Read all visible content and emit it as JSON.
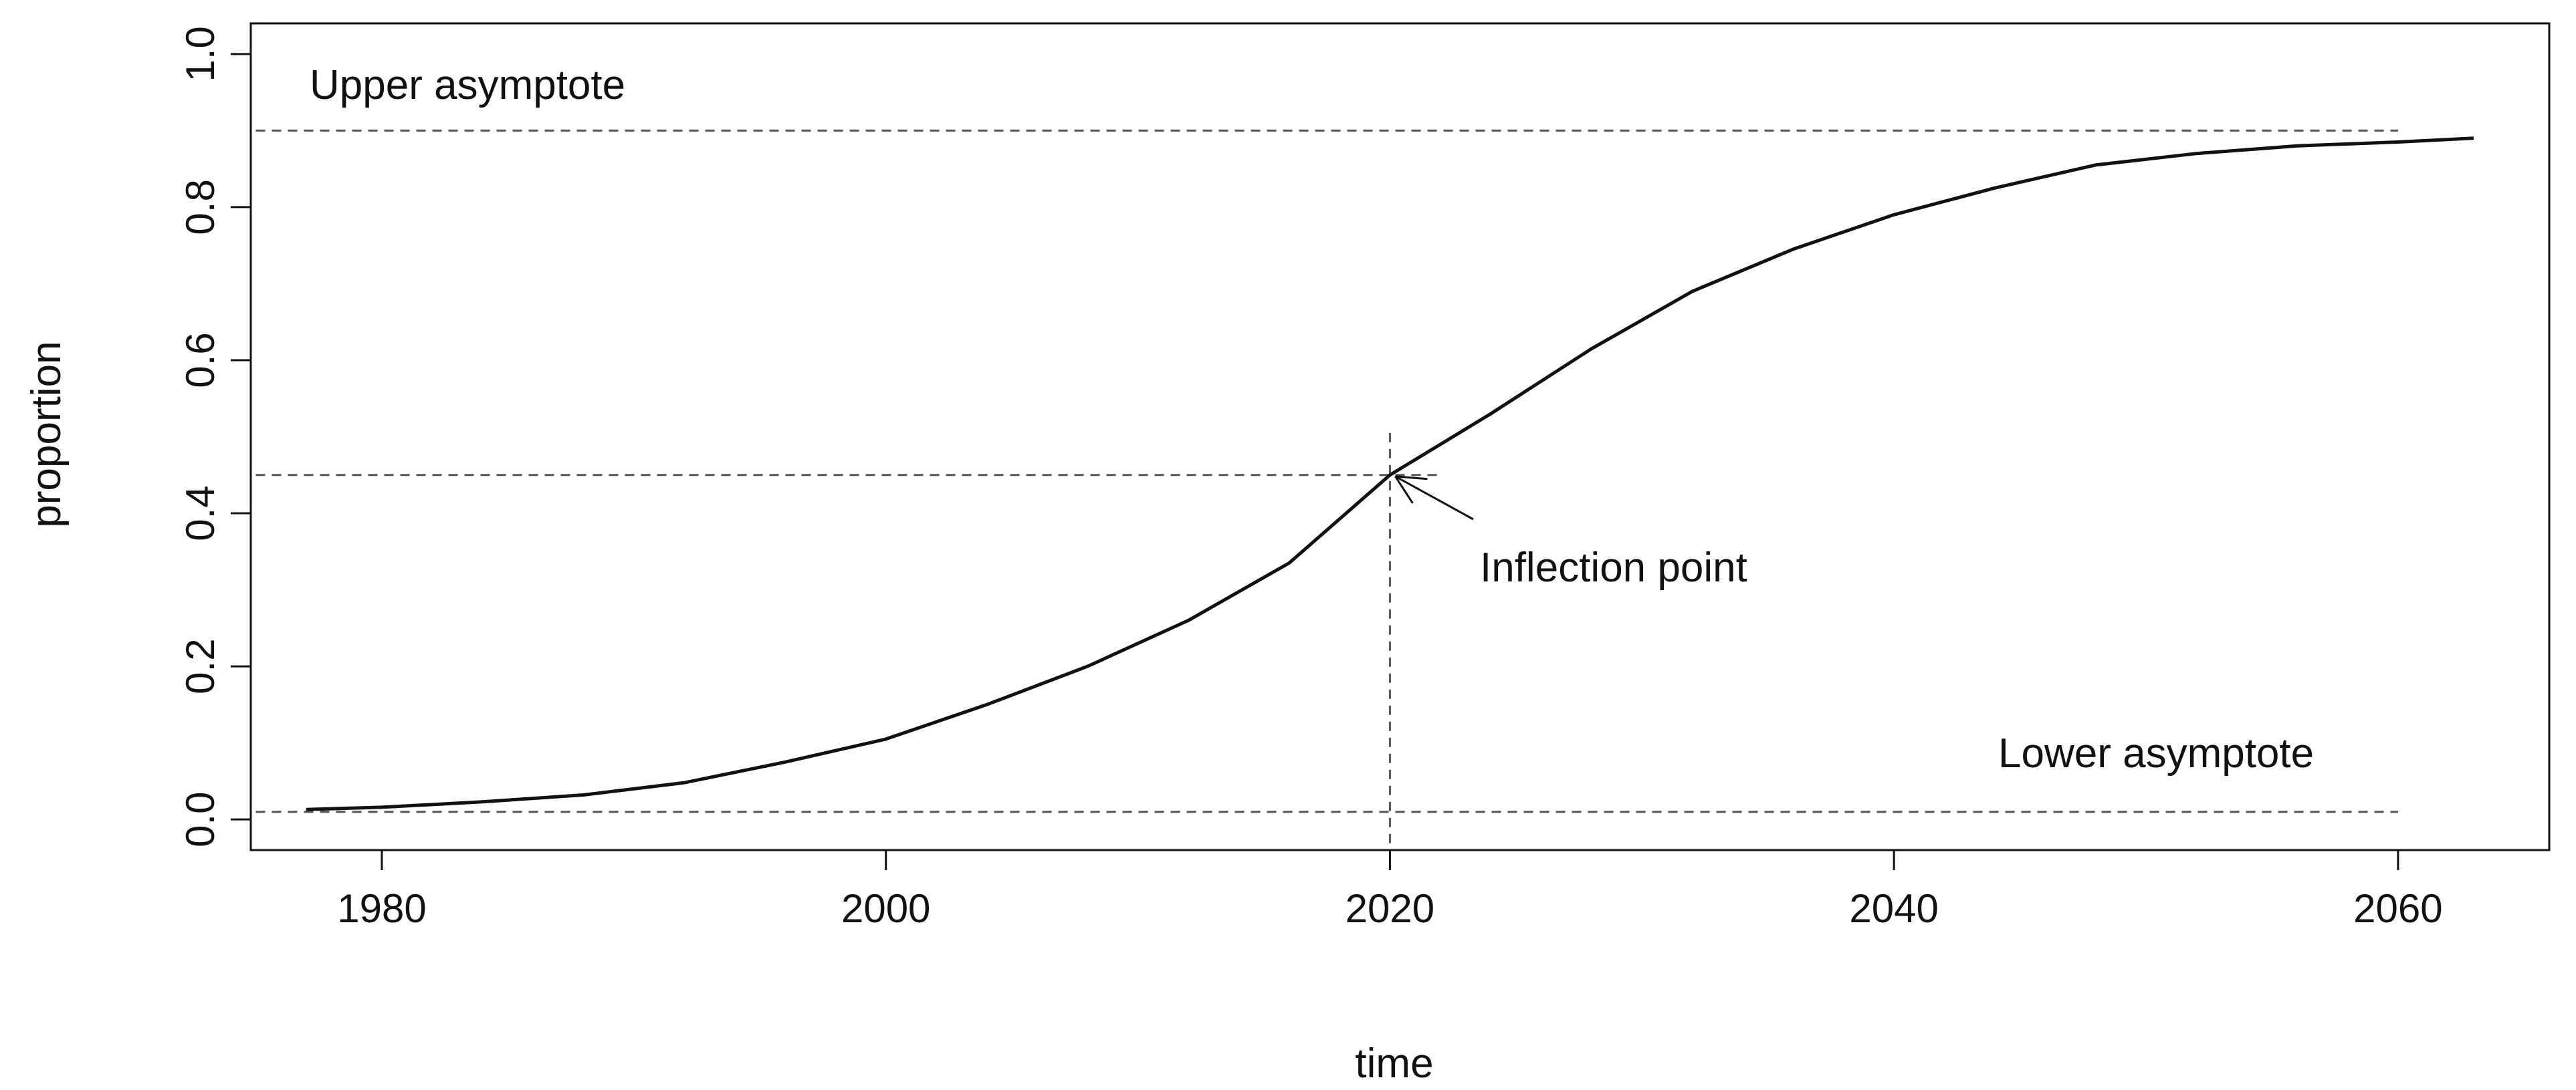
{
  "chart_data": {
    "type": "line",
    "title": "",
    "xlabel": "time",
    "ylabel": "proportion",
    "xlim": [
      1974.8,
      2066.0
    ],
    "ylim": [
      -0.04,
      1.04
    ],
    "xticks": [
      1980,
      2000,
      2020,
      2040,
      2060
    ],
    "yticks": [
      0.0,
      0.2,
      0.4,
      0.6,
      0.8,
      1.0
    ],
    "ytick_labels": [
      "0.0",
      "0.2",
      "0.4",
      "0.6",
      "0.8",
      "1.0"
    ],
    "grid": false,
    "series": [
      {
        "x": [
          1977,
          1980,
          1984,
          1988,
          1992,
          1996,
          2000,
          2004,
          2008,
          2012,
          2016,
          2020,
          2024,
          2028,
          2032,
          2036,
          2040,
          2044,
          2048,
          2052,
          2056,
          2060,
          2063
        ],
        "y": [
          0.013,
          0.016,
          0.023,
          0.032,
          0.048,
          0.075,
          0.105,
          0.15,
          0.2,
          0.26,
          0.335,
          0.45,
          0.53,
          0.615,
          0.69,
          0.745,
          0.79,
          0.825,
          0.855,
          0.87,
          0.88,
          0.885,
          0.89
        ]
      }
    ],
    "reference_lines": {
      "upper_asymptote_y": 0.9,
      "lower_asymptote_y": 0.01,
      "inflection_x": 2020,
      "inflection_y": 0.45,
      "line_x_range": [
        1975,
        2060
      ],
      "hline_inflection_x_range": [
        1975,
        2022
      ]
    },
    "annotations": {
      "upper": "Upper asymptote",
      "lower": "Lower asymptote",
      "inflection": "Inflection point"
    }
  }
}
